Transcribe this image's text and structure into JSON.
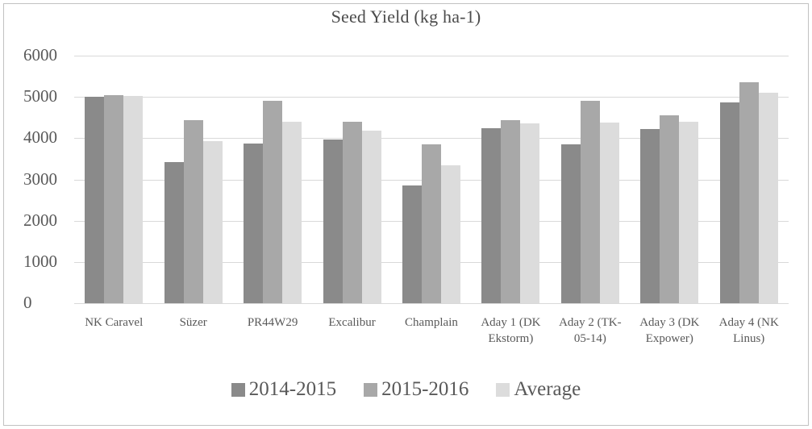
{
  "chart_data": {
    "type": "bar",
    "title": "Seed Yield (kg ha-1)",
    "xlabel": "",
    "ylabel": "",
    "ylim": [
      0,
      6000
    ],
    "y_ticks": [
      0,
      1000,
      2000,
      3000,
      4000,
      5000,
      6000
    ],
    "grid": true,
    "legend_position": "bottom",
    "categories": [
      "NK Caravel",
      "Süzer",
      "PR44W29",
      "Excalibur",
      "Champlain",
      "Aday 1 (DK Ekstorm)",
      "Aday 2 (TK-05-14)",
      "Aday 3 (DK Expower)",
      "Aday 4 (NK Linus)"
    ],
    "series": [
      {
        "name": "2014-2015",
        "color": "#8a8a8a",
        "values": [
          5010,
          3420,
          3870,
          3970,
          2850,
          4250,
          3850,
          4230,
          4870
        ]
      },
      {
        "name": "2015-2016",
        "color": "#a8a8a8",
        "values": [
          5050,
          4430,
          4900,
          4390,
          3850,
          4440,
          4900,
          4560,
          5360
        ]
      },
      {
        "name": "Average",
        "color": "#dcdcdc",
        "values": [
          5030,
          3920,
          4390,
          4180,
          3340,
          4350,
          4380,
          4400,
          5110
        ]
      }
    ],
    "colors": {
      "gridline": "#d9d9d9",
      "axis_text": "#595959",
      "title_text": "#4c4c4c"
    }
  }
}
